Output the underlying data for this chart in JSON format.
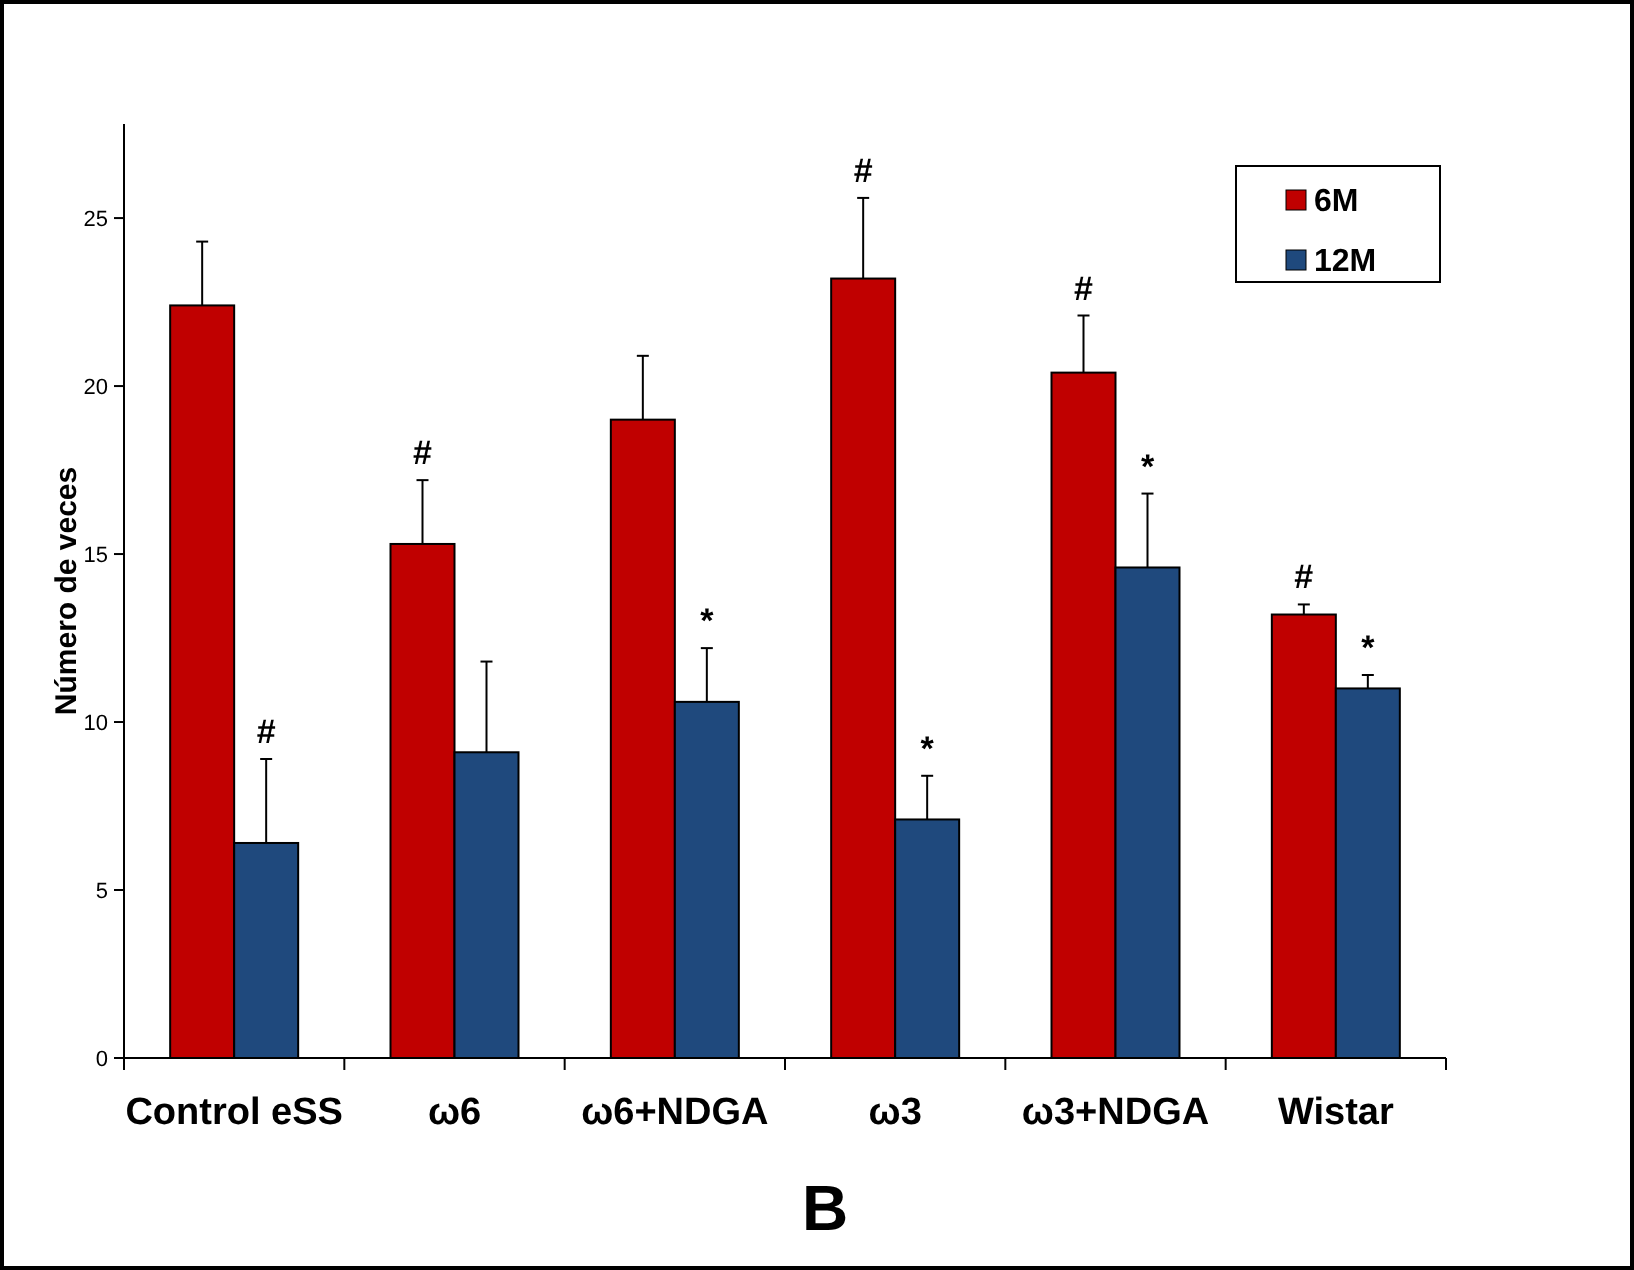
{
  "chart_data": {
    "type": "bar",
    "ylabel": "Número de veces",
    "categories": [
      "Control eSS",
      "ω6",
      "ω6+NDGA",
      "ω3",
      "ω3+NDGA",
      "Wistar"
    ],
    "series": [
      {
        "name": "6M",
        "color": "#c00000",
        "values": [
          22.4,
          15.3,
          19.0,
          23.2,
          20.4,
          13.2
        ],
        "errors": [
          1.9,
          1.9,
          1.9,
          2.4,
          1.7,
          0.3
        ],
        "value_labels": [
          null,
          "#",
          null,
          "#",
          "#",
          "#"
        ]
      },
      {
        "name": "12M",
        "color": "#1f497d",
        "values": [
          6.4,
          9.1,
          10.6,
          7.1,
          14.6,
          11.0
        ],
        "errors": [
          2.5,
          2.7,
          1.6,
          1.3,
          2.2,
          0.4
        ],
        "value_labels": [
          "#",
          null,
          "*",
          "*",
          "*",
          "*"
        ]
      }
    ],
    "ylim": [
      0,
      27.8
    ],
    "yticks": [
      0,
      5,
      10,
      15,
      20,
      25
    ],
    "legend": "top right",
    "annotations": [
      "B"
    ]
  }
}
